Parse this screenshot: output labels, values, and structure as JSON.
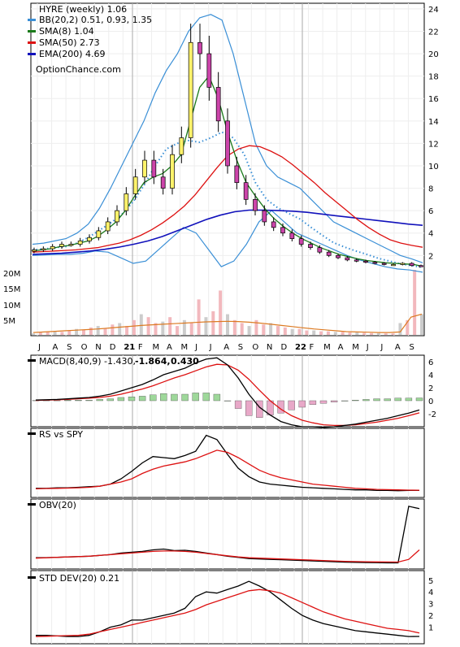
{
  "chart_data": [
    {
      "type": "line",
      "panel": "price",
      "title": "HYRE (weekly) 1.06",
      "watermark": "OptionChance.com",
      "x_labels": [
        "J",
        "A",
        "S",
        "O",
        "N",
        "D",
        "21",
        "F",
        "M",
        "A",
        "M",
        "J",
        "J",
        "A",
        "S",
        "O",
        "N",
        "D",
        "22",
        "F",
        "M",
        "A",
        "M",
        "J",
        "J",
        "A",
        "S"
      ],
      "yticks": [
        2,
        4,
        6,
        8,
        10,
        12,
        14,
        16,
        18,
        20,
        22,
        24
      ],
      "ylim": [
        0.5,
        24.5
      ],
      "grid": true,
      "legend_position": "top-left",
      "legend": [
        {
          "label": "BB(20,2) 0.51, 0.93, 1.35",
          "color": "#3a8fd6"
        },
        {
          "label": "SMA(8) 1.04",
          "color": "#1a7a1a"
        },
        {
          "label": "SMA(50) 2.73",
          "color": "#dd1111"
        },
        {
          "label": "EMA(200) 4.69",
          "color": "#1111bb"
        }
      ],
      "series": [
        {
          "name": "close",
          "values": [
            2.5,
            2.6,
            2.8,
            3,
            3,
            3.3,
            3.6,
            4.2,
            5,
            6,
            7.5,
            9,
            10.5,
            9,
            8,
            11,
            12.5,
            21,
            20,
            17,
            14,
            10,
            8.5,
            7,
            6,
            5,
            4.5,
            4,
            3.5,
            3,
            2.7,
            2.3,
            2,
            1.8,
            1.6,
            1.5,
            1.4,
            1.3,
            1.2,
            1.2,
            1.3,
            1.1,
            1.06
          ]
        },
        {
          "name": "SMA(8)",
          "values": [
            2.4,
            2.5,
            2.6,
            2.8,
            2.9,
            3.1,
            3.3,
            3.7,
            4.3,
            5,
            6,
            7.3,
            8.5,
            9,
            9.3,
            10,
            11,
            14,
            17,
            18,
            16,
            13,
            10.5,
            8.5,
            7.3,
            6.2,
            5.3,
            4.6,
            4,
            3.5,
            3.1,
            2.7,
            2.4,
            2.1,
            1.9,
            1.7,
            1.55,
            1.45,
            1.35,
            1.3,
            1.25,
            1.2,
            1.04
          ]
        },
        {
          "name": "SMA(50)",
          "values": [
            2.3,
            2.35,
            2.4,
            2.45,
            2.5,
            2.6,
            2.7,
            2.9,
            3.1,
            3.4,
            3.8,
            4.3,
            4.9,
            5.6,
            6.4,
            7.4,
            8.6,
            9.8,
            10.9,
            11.5,
            11.8,
            11.7,
            11.3,
            10.8,
            10.1,
            9.3,
            8.5,
            7.6,
            6.8,
            6,
            5.2,
            4.5,
            3.9,
            3.4,
            3.1,
            2.9,
            2.73
          ]
        },
        {
          "name": "EMA(200)",
          "values": [
            2.1,
            2.15,
            2.2,
            2.3,
            2.4,
            2.55,
            2.75,
            3,
            3.3,
            3.7,
            4.2,
            4.7,
            5.2,
            5.6,
            5.9,
            6.05,
            6.05,
            6,
            5.95,
            5.85,
            5.7,
            5.55,
            5.4,
            5.25,
            5.1,
            4.95,
            4.8,
            4.69
          ]
        },
        {
          "name": "BB upper",
          "values": [
            3,
            3.1,
            3.3,
            3.5,
            4,
            4.8,
            6.2,
            8,
            10,
            12,
            14,
            16.5,
            18.5,
            20,
            22,
            23.2,
            23.5,
            23,
            20,
            16,
            12,
            10,
            9,
            8.5,
            8,
            7,
            6,
            5,
            4.5,
            4,
            3.5,
            3,
            2.5,
            2,
            1.7,
            1.35
          ]
        },
        {
          "name": "BB lower",
          "values": [
            2,
            2.05,
            2.1,
            2.1,
            2.2,
            2.4,
            2.3,
            1.8,
            1.3,
            1.5,
            2.5,
            3.5,
            4.5,
            4,
            2.5,
            1,
            1.5,
            3,
            5,
            6,
            5,
            4,
            3.5,
            3,
            2.5,
            2,
            1.6,
            1.3,
            1,
            0.8,
            0.7,
            0.51
          ]
        }
      ]
    },
    {
      "type": "bar",
      "panel": "volume",
      "yticks": [
        "20M",
        "15M",
        "10M",
        "5M"
      ],
      "ylim": [
        0,
        22
      ],
      "values": [
        0.5,
        0.8,
        1,
        1.2,
        1,
        1.5,
        2,
        1.8,
        2.5,
        3,
        2.2,
        3.5,
        4,
        3,
        5,
        7,
        6,
        4,
        4.5,
        6,
        3,
        5,
        4,
        12,
        6,
        8,
        15,
        7,
        5,
        4,
        3,
        5,
        3.5,
        4,
        3,
        2.5,
        2,
        2,
        1.5,
        1.5,
        1.2,
        1.2,
        1,
        1,
        0.8,
        0.8,
        0.7,
        0.6,
        0.6,
        0.5,
        0.5,
        4,
        5,
        22,
        7
      ],
      "volume_ma": [
        0.8,
        1,
        1.2,
        1.4,
        1.6,
        1.8,
        2,
        2.3,
        2.6,
        2.9,
        3.2,
        3.4,
        3.6,
        3.8,
        4,
        4.2,
        4.4,
        4.5,
        4.6,
        4.5,
        4.3,
        4,
        3.6,
        3.2,
        2.8,
        2.4,
        2,
        1.7,
        1.4,
        1.1,
        1,
        0.9,
        0.8,
        0.8,
        1,
        6,
        7
      ]
    },
    {
      "type": "line",
      "panel": "MACD",
      "title": "MACD(8,40,9) -1.430,",
      "values_text": [
        "-1.864,",
        "0.430"
      ],
      "value_colors": [
        "#cc0000",
        "#1144cc"
      ],
      "yticks": [
        6,
        4,
        2,
        0,
        -2
      ],
      "ylim": [
        -4,
        7
      ],
      "series": [
        {
          "name": "MACD",
          "values": [
            0.1,
            0.15,
            0.2,
            0.3,
            0.4,
            0.5,
            0.7,
            1,
            1.5,
            2,
            2.5,
            3.2,
            4,
            4.5,
            5,
            5.8,
            6.4,
            6.6,
            5.5,
            3.5,
            1,
            -1,
            -2.2,
            -3.2,
            -3.7,
            -4,
            -4,
            -4.1,
            -4,
            -3.8,
            -3.6,
            -3.3,
            -3,
            -2.7,
            -2.3,
            -1.9,
            -1.43
          ]
        },
        {
          "name": "signal",
          "values": [
            0.05,
            0.1,
            0.15,
            0.2,
            0.3,
            0.4,
            0.5,
            0.7,
            1,
            1.4,
            1.8,
            2.3,
            2.9,
            3.5,
            4,
            4.6,
            5.2,
            5.6,
            5.5,
            4.7,
            3.3,
            1.6,
            0,
            -1.3,
            -2.3,
            -3,
            -3.4,
            -3.7,
            -3.8,
            -3.8,
            -3.7,
            -3.5,
            -3.3,
            -3,
            -2.7,
            -2.3,
            -1.86
          ]
        },
        {
          "name": "histogram",
          "values": [
            0.05,
            0.05,
            0.05,
            0.1,
            0.1,
            0.1,
            0.2,
            0.3,
            0.5,
            0.6,
            0.7,
            0.9,
            1.1,
            1,
            1,
            1.2,
            1.2,
            1,
            0,
            -1.2,
            -2.3,
            -2.6,
            -2.2,
            -1.9,
            -1.4,
            -1,
            -0.6,
            -0.4,
            -0.2,
            0,
            0.1,
            0.2,
            0.3,
            0.3,
            0.4,
            0.4,
            0.43
          ]
        }
      ]
    },
    {
      "type": "line",
      "panel": "RS vs SPY",
      "title": "RS vs SPY",
      "series": [
        {
          "name": "RS",
          "values": [
            0.6,
            0.6,
            0.65,
            0.65,
            0.7,
            0.75,
            0.8,
            1,
            1.5,
            2.2,
            3,
            3.6,
            3.5,
            3.4,
            3.7,
            4.1,
            5.6,
            5.2,
            3.8,
            2.5,
            1.7,
            1.2,
            1,
            0.9,
            0.8,
            0.7,
            0.65,
            0.6,
            0.55,
            0.5,
            0.45,
            0.45,
            0.4,
            0.4,
            0.38,
            0.4,
            0.4
          ]
        },
        {
          "name": "RS average",
          "values": [
            0.55,
            0.58,
            0.6,
            0.62,
            0.65,
            0.7,
            0.8,
            1,
            1.2,
            1.5,
            2,
            2.4,
            2.7,
            2.9,
            3.1,
            3.4,
            3.8,
            4.2,
            4,
            3.5,
            2.9,
            2.3,
            1.9,
            1.6,
            1.4,
            1.2,
            1,
            0.9,
            0.8,
            0.7,
            0.6,
            0.55,
            0.5,
            0.48,
            0.45,
            0.43,
            0.42
          ]
        }
      ]
    },
    {
      "type": "line",
      "panel": "OBV",
      "title": "OBV(20)",
      "series": [
        {
          "name": "OBV",
          "values": [
            1,
            1.02,
            1.05,
            1.1,
            1.15,
            1.2,
            1.3,
            1.4,
            1.6,
            1.7,
            1.8,
            2,
            2.1,
            1.9,
            1.95,
            1.8,
            1.6,
            1.4,
            1.2,
            1.05,
            0.9,
            0.85,
            0.8,
            0.75,
            0.7,
            0.65,
            0.6,
            0.55,
            0.5,
            0.45,
            0.42,
            0.4,
            0.38,
            0.35,
            0.35,
            7.5,
            7.2
          ]
        },
        {
          "name": "OBV average",
          "values": [
            0.95,
            1,
            1.05,
            1.1,
            1.15,
            1.2,
            1.3,
            1.4,
            1.5,
            1.6,
            1.7,
            1.8,
            1.85,
            1.85,
            1.8,
            1.7,
            1.55,
            1.4,
            1.25,
            1.1,
            1,
            0.95,
            0.9,
            0.85,
            0.8,
            0.75,
            0.7,
            0.65,
            0.6,
            0.55,
            0.52,
            0.5,
            0.48,
            0.47,
            0.46,
            0.8,
            2
          ]
        }
      ]
    },
    {
      "type": "line",
      "panel": "STD DEV",
      "title": "STD DEV(20) 0.21",
      "yticks": [
        5,
        4,
        3,
        2,
        1
      ],
      "ylim": [
        0,
        5.4
      ],
      "series": [
        {
          "name": "STD DEV",
          "values": [
            0.3,
            0.3,
            0.25,
            0.2,
            0.2,
            0.3,
            0.6,
            1,
            1.2,
            1.6,
            1.6,
            1.8,
            2,
            2.2,
            2.6,
            3.6,
            4,
            3.9,
            4.2,
            4.5,
            4.9,
            4.5,
            4,
            3.3,
            2.6,
            2,
            1.6,
            1.3,
            1.1,
            0.9,
            0.7,
            0.6,
            0.5,
            0.4,
            0.3,
            0.2,
            0.21
          ]
        },
        {
          "name": "STD DEV average",
          "values": [
            0.2,
            0.22,
            0.25,
            0.28,
            0.3,
            0.4,
            0.6,
            0.8,
            1,
            1.2,
            1.4,
            1.6,
            1.8,
            2,
            2.2,
            2.5,
            2.9,
            3.2,
            3.5,
            3.8,
            4.1,
            4.2,
            4.1,
            3.9,
            3.5,
            3.1,
            2.7,
            2.3,
            2,
            1.7,
            1.5,
            1.3,
            1.1,
            0.9,
            0.8,
            0.7,
            0.5
          ]
        }
      ]
    }
  ]
}
